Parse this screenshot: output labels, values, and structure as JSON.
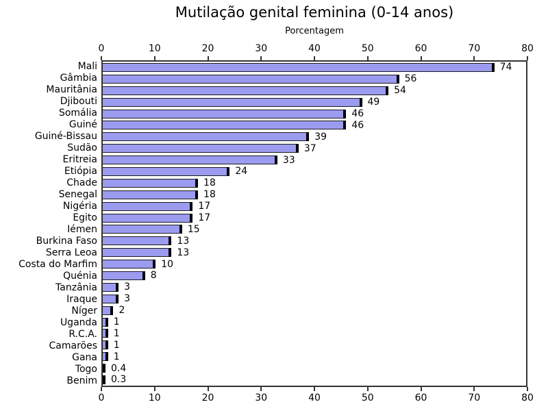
{
  "chart_data": {
    "type": "bar",
    "orientation": "horizontal",
    "title": "Mutilação genital feminina (0-14 anos)",
    "xlabel": "Porcentagem",
    "categories": [
      "Mali",
      "Gâmbia",
      "Mauritânia",
      "Djibouti",
      "Somália",
      "Guiné",
      "Guiné-Bissau",
      "Sudão",
      "Eritreia",
      "Etiópia",
      "Chade",
      "Senegal",
      "Nigéria",
      "Egito",
      "Iémen",
      "Burkina Faso",
      "Serra Leoa",
      "Costa do Marfim",
      "Quénia",
      "Tanzânia",
      "Iraque",
      "Níger",
      "Uganda",
      "R.C.A.",
      "Camarões",
      "Gana",
      "Togo",
      "Benim"
    ],
    "values": [
      74,
      56,
      54,
      49,
      46,
      46,
      39,
      37,
      33,
      24,
      18,
      18,
      17,
      17,
      15,
      13,
      13,
      10,
      8,
      3,
      3,
      2,
      1,
      1,
      1,
      1,
      0.4,
      0.3
    ],
    "value_labels": [
      "74",
      "56",
      "54",
      "49",
      "46",
      "46",
      "39",
      "37",
      "33",
      "24",
      "18",
      "18",
      "17",
      "17",
      "15",
      "13",
      "13",
      "10",
      "8",
      "3",
      "3",
      "2",
      "1",
      "1",
      "1",
      "1",
      "0.4",
      "0.3"
    ],
    "xlim": [
      0,
      80
    ],
    "xticks": [
      0,
      10,
      20,
      30,
      40,
      50,
      60,
      70,
      80
    ],
    "grid": false,
    "legend": "none",
    "ticks_position": "top-and-bottom",
    "colors": {
      "bar_fill": "#9b9bf0",
      "bar_edge": "#1a1a1a",
      "bar_cap": "#000000",
      "spine": "#333333",
      "text": "#000000",
      "background": "#ffffff"
    }
  }
}
